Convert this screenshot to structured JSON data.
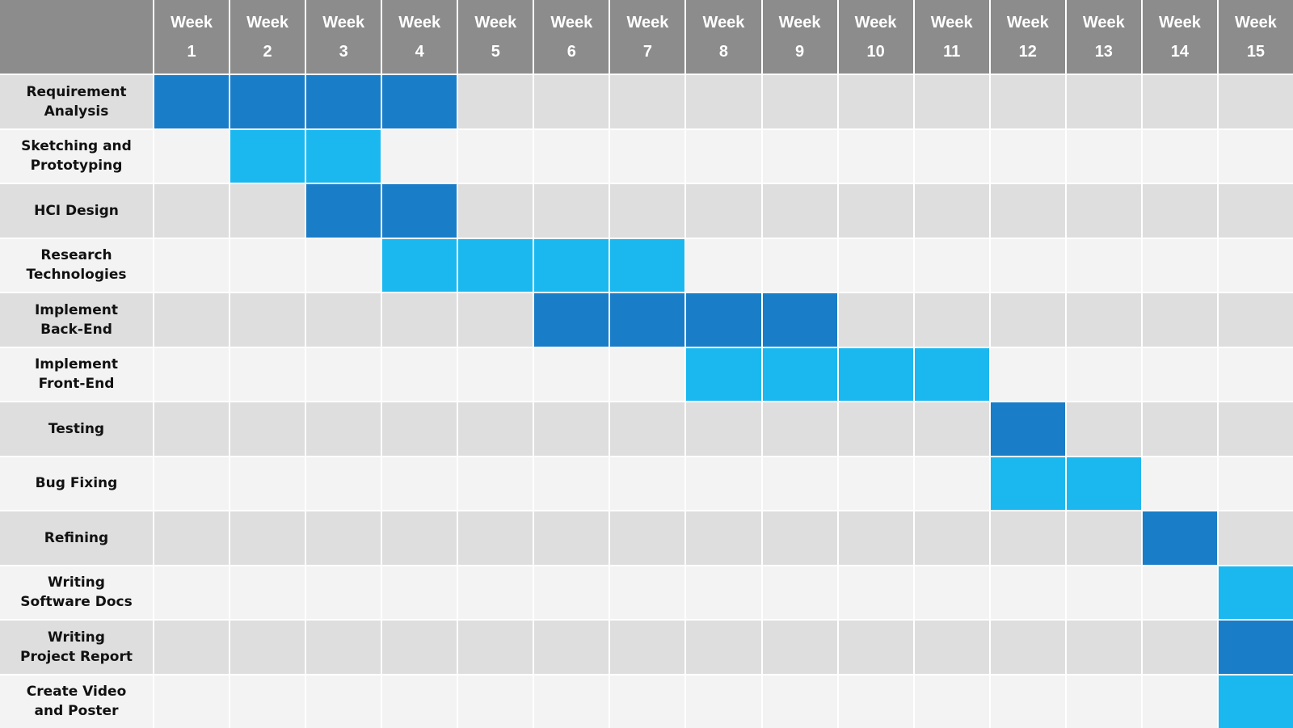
{
  "chart_data": {
    "type": "gantt",
    "weeks": [
      "Week\n1",
      "Week\n2",
      "Week\n3",
      "Week\n4",
      "Week\n5",
      "Week\n6",
      "Week\n7",
      "Week\n8",
      "Week\n9",
      "Week\n10",
      "Week\n11",
      "Week\n12",
      "Week\n13",
      "Week\n14",
      "Week\n15"
    ],
    "tasks": [
      {
        "label": "Requirement\nAnalysis",
        "start_week": 1,
        "end_week": 4,
        "color": "#1a7dc7"
      },
      {
        "label": "Sketching and\nPrototyping",
        "start_week": 2,
        "end_week": 3,
        "color": "#1bb8f0"
      },
      {
        "label": "HCI Design",
        "start_week": 3,
        "end_week": 4,
        "color": "#1a7dc7"
      },
      {
        "label": "Research\nTechnologies",
        "start_week": 4,
        "end_week": 7,
        "color": "#1bb8f0"
      },
      {
        "label": "Implement\nBack-End",
        "start_week": 6,
        "end_week": 9,
        "color": "#1a7dc7"
      },
      {
        "label": "Implement\nFront-End",
        "start_week": 8,
        "end_week": 11,
        "color": "#1bb8f0"
      },
      {
        "label": "Testing",
        "start_week": 12,
        "end_week": 12,
        "color": "#1a7dc7"
      },
      {
        "label": "Bug Fixing",
        "start_week": 12,
        "end_week": 13,
        "color": "#1bb8f0"
      },
      {
        "label": "Refining",
        "start_week": 14,
        "end_week": 14,
        "color": "#1a7dc7"
      },
      {
        "label": "Writing\nSoftware Docs",
        "start_week": 15,
        "end_week": 15,
        "color": "#1bb8f0"
      },
      {
        "label": "Writing\nProject Report",
        "start_week": 15,
        "end_week": 15,
        "color": "#1a7dc7"
      },
      {
        "label": "Create Video\nand Poster",
        "start_week": 15,
        "end_week": 15,
        "color": "#1bb8f0"
      }
    ]
  },
  "colors": {
    "header_bg": "#8c8c8c",
    "header_text": "#ffffff",
    "row_shade_dark": "#dedede",
    "row_shade_light": "#f3f3f3",
    "bar_dark_blue": "#1a7dc7",
    "bar_light_blue": "#1bb8f0"
  }
}
